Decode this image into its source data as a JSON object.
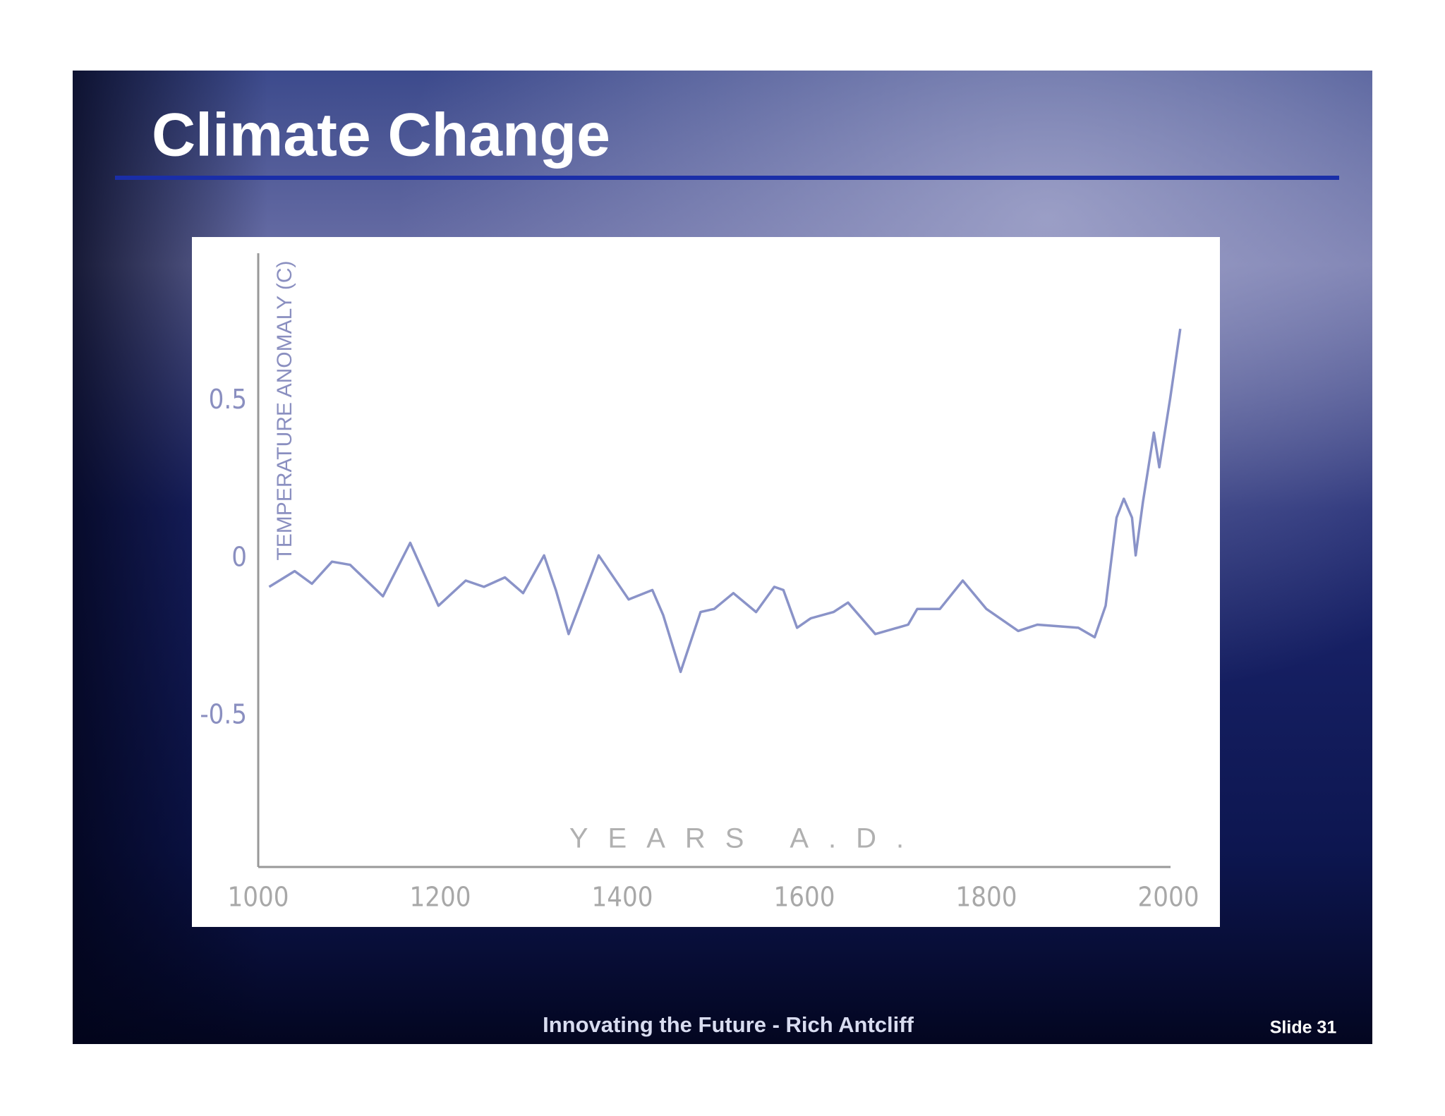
{
  "slide": {
    "title": "Climate Change",
    "footer": "Innovating the Future - Rich Antcliff",
    "slide_number": "Slide 31"
  },
  "chart_data": {
    "type": "line",
    "x_label": "YEARS A.D.",
    "y_label": "TEMPERATURE ANOMALY (C)",
    "x": [
      1012,
      1040,
      1059,
      1081,
      1101,
      1137,
      1167,
      1198,
      1228,
      1248,
      1271,
      1291,
      1314,
      1327,
      1341,
      1374,
      1407,
      1433,
      1445,
      1464,
      1486,
      1501,
      1522,
      1547,
      1567,
      1577,
      1592,
      1607,
      1632,
      1648,
      1678,
      1714,
      1724,
      1749,
      1774,
      1800,
      1835,
      1856,
      1901,
      1919,
      1931,
      1943,
      1951,
      1960,
      1964,
      1972,
      1984,
      1990,
      2002,
      2013
    ],
    "series": [
      {
        "color": "#8a93c8",
        "values": [
          -0.09,
          -0.04,
          -0.08,
          -0.01,
          -0.02,
          -0.12,
          0.05,
          -0.15,
          -0.07,
          -0.09,
          -0.06,
          -0.11,
          0.01,
          -0.1,
          -0.24,
          0.01,
          -0.13,
          -0.1,
          -0.18,
          -0.36,
          -0.17,
          -0.16,
          -0.11,
          -0.17,
          -0.09,
          -0.1,
          -0.22,
          -0.19,
          -0.17,
          -0.14,
          -0.24,
          -0.21,
          -0.16,
          -0.16,
          -0.07,
          -0.16,
          -0.23,
          -0.21,
          -0.22,
          -0.25,
          -0.15,
          0.13,
          0.19,
          0.13,
          0.01,
          0.18,
          0.4,
          0.29,
          0.51,
          0.73
        ]
      }
    ],
    "xlim": [
      1000,
      2000
    ],
    "xticks": [
      1000,
      1200,
      1400,
      1600,
      1800,
      2000
    ],
    "ylim": [
      -0.98,
      0.97
    ],
    "yticks": [
      -0.5,
      0,
      0.5
    ],
    "grid": false
  }
}
